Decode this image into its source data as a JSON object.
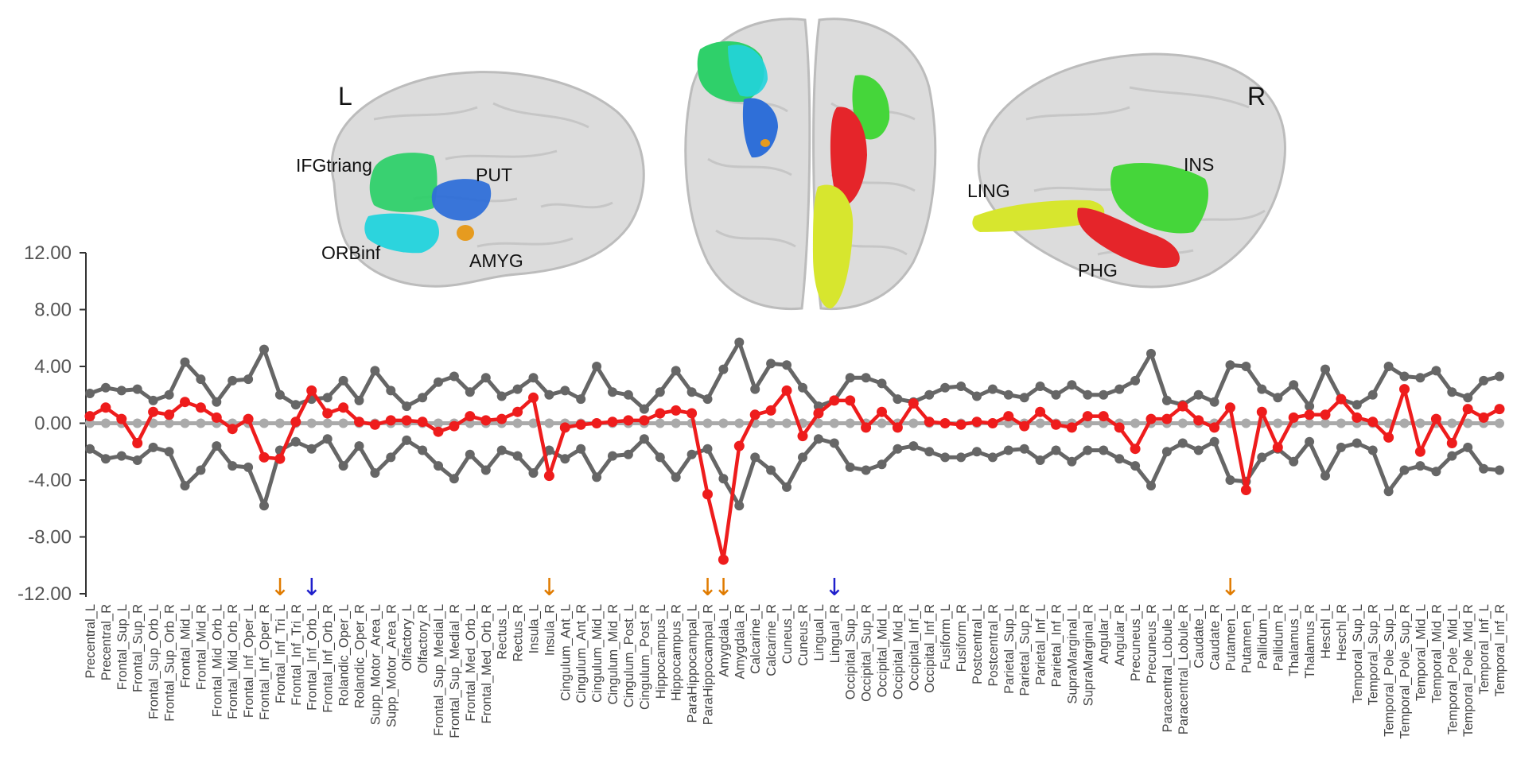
{
  "brain_panel": {
    "hemisphere_left": "L",
    "hemisphere_right": "R",
    "region_labels": [
      "IFGtriang",
      "PUT",
      "ORBinf",
      "AMYG",
      "LING",
      "INS",
      "PHG"
    ],
    "region_colors": {
      "IFGtriang": "#2fd06a",
      "ORBinf": "#22d3dc",
      "PUT": "#2f6fd8",
      "AMYG": "#e69b1f",
      "LING": "#d7e62e",
      "INS": "#45d63a",
      "PHG": "#e5252a"
    }
  },
  "chart_data": {
    "type": "line",
    "title": "",
    "xlabel": "",
    "ylabel": "",
    "ylim": [
      -12,
      12
    ],
    "yticks": [
      "12.00",
      "8.00",
      "4.00",
      "0.00",
      "-4.00",
      "-8.00",
      "-12.00"
    ],
    "grid": false,
    "legend": "none",
    "categories": [
      "Precentral_L",
      "Precentral_R",
      "Frontal_Sup_L",
      "Frontal_Sup_R",
      "Frontal_Sup_Orb_L",
      "Frontal_Sup_Orb_R",
      "Frontal_Mid_L",
      "Frontal_Mid_R",
      "Frontal_Mid_Orb_L",
      "Frontal_Mid_Orb_R",
      "Frontal_Inf_Oper_L",
      "Frontal_Inf_Oper_R",
      "Frontal_Inf_Tri_L",
      "Frontal_Inf_Tri_R",
      "Frontal_Inf_Orb_L",
      "Frontal_Inf_Orb_R",
      "Rolandic_Oper_L",
      "Rolandic_Oper_R",
      "Supp_Motor_Area_L",
      "Supp_Motor_Area_R",
      "Olfactory_L",
      "Olfactory_R",
      "Frontal_Sup_Medial_L",
      "Frontal_Sup_Medial_R",
      "Frontal_Med_Orb_L",
      "Frontal_Med_Orb_R",
      "Rectus_L",
      "Rectus_R",
      "Insula_L",
      "Insula_R",
      "Cingulum_Ant_L",
      "Cingulum_Ant_R",
      "Cingulum_Mid_L",
      "Cingulum_Mid_R",
      "Cingulum_Post_L",
      "Cingulum_Post_R",
      "Hippocampus_L",
      "Hippocampus_R",
      "ParaHippocampal_L",
      "ParaHippocampal_R",
      "Amygdala_L",
      "Amygdala_R",
      "Calcarine_L",
      "Calcarine_R",
      "Cuneus_L",
      "Cuneus_R",
      "Lingual_L",
      "Lingual_R",
      "Occipital_Sup_L",
      "Occipital_Sup_R",
      "Occipital_Mid_L",
      "Occipital_Mid_R",
      "Occipital_Inf_L",
      "Occipital_Inf_R",
      "Fusiform_L",
      "Fusiform_R",
      "Postcentral_L",
      "Postcentral_R",
      "Parietal_Sup_L",
      "Parietal_Sup_R",
      "Parietal_Inf_L",
      "Parietal_Inf_R",
      "SupraMarginal_L",
      "SupraMarginal_R",
      "Angular_L",
      "Angular_R",
      "Precuneus_L",
      "Precuneus_R",
      "Paracentral_Lobule_L",
      "Paracentral_Lobule_R",
      "Caudate_L",
      "Caudate_R",
      "Putamen_L",
      "Putamen_R",
      "Pallidum_L",
      "Pallidum_R",
      "Thalamus_L",
      "Thalamus_R",
      "Heschl_L",
      "Heschl_R",
      "Temporal_Sup_L",
      "Temporal_Sup_R",
      "Temporal_Pole_Sup_L",
      "Temporal_Pole_Sup_R",
      "Temporal_Mid_L",
      "Temporal_Mid_R",
      "Temporal_Pole_Mid_L",
      "Temporal_Pole_Mid_R",
      "Temporal_Inf_L",
      "Temporal_Inf_R"
    ],
    "series": [
      {
        "color": "#666666",
        "values": [
          2.1,
          2.5,
          2.3,
          2.4,
          1.6,
          2.0,
          4.3,
          3.1,
          1.5,
          3.0,
          3.1,
          5.2,
          2.0,
          1.3,
          1.7,
          1.8,
          3.0,
          1.6,
          3.7,
          2.3,
          1.2,
          1.8,
          2.9,
          3.3,
          2.2,
          3.2,
          1.9,
          2.4,
          3.2,
          2.0,
          2.3,
          1.7,
          4.0,
          2.2,
          2.0,
          1.0,
          2.2,
          3.7,
          2.2,
          1.7,
          3.8,
          5.7,
          2.4,
          4.2,
          4.1,
          2.5,
          1.2,
          1.6,
          3.2,
          3.2,
          2.8,
          1.7,
          1.5,
          2.0,
          2.5,
          2.6,
          1.9,
          2.4,
          2.0,
          1.8,
          2.6,
          2.0,
          2.7,
          2.0,
          2.0,
          2.4,
          3.0,
          4.9,
          1.6,
          1.3,
          2.0,
          1.5,
          4.1,
          4.0,
          2.4,
          1.8,
          2.7,
          1.2,
          3.8,
          1.7,
          1.3,
          2.0,
          4.0,
          3.3,
          3.2,
          3.7,
          2.2,
          1.8,
          3.0,
          3.3
        ]
      },
      {
        "color": "#666666",
        "values": [
          -1.8,
          -2.5,
          -2.3,
          -2.6,
          -1.7,
          -2.0,
          -4.4,
          -3.3,
          -1.6,
          -3.0,
          -3.1,
          -5.8,
          -1.9,
          -1.3,
          -1.8,
          -1.1,
          -3.0,
          -1.6,
          -3.5,
          -2.4,
          -1.2,
          -1.9,
          -3.0,
          -3.9,
          -2.2,
          -3.3,
          -1.9,
          -2.3,
          -3.5,
          -1.9,
          -2.5,
          -1.8,
          -3.8,
          -2.3,
          -2.2,
          -1.1,
          -2.4,
          -3.8,
          -2.2,
          -1.8,
          -3.9,
          -5.8,
          -2.4,
          -3.3,
          -4.5,
          -2.4,
          -1.1,
          -1.4,
          -3.1,
          -3.3,
          -2.9,
          -1.8,
          -1.6,
          -2.0,
          -2.4,
          -2.4,
          -2.0,
          -2.4,
          -1.9,
          -1.8,
          -2.6,
          -1.9,
          -2.7,
          -1.9,
          -1.9,
          -2.5,
          -3.0,
          -4.4,
          -2.0,
          -1.4,
          -1.9,
          -1.3,
          -4.0,
          -4.1,
          -2.4,
          -1.8,
          -2.7,
          -1.3,
          -3.7,
          -1.7,
          -1.4,
          -1.9,
          -4.8,
          -3.3,
          -3.0,
          -3.4,
          -2.3,
          -1.7,
          -3.2,
          -3.3
        ]
      },
      {
        "color": "#aaaaaa",
        "values": [
          0,
          0,
          0,
          0,
          0,
          0,
          0,
          0,
          0,
          0,
          0,
          0,
          0,
          0,
          0,
          0,
          0,
          0,
          0,
          0,
          0,
          0,
          0,
          0,
          0,
          0,
          0,
          0,
          0,
          0,
          0,
          0,
          0,
          0,
          0,
          0,
          0,
          0,
          0,
          0,
          0,
          0,
          0,
          0,
          0,
          0,
          0,
          0,
          0,
          0,
          0,
          0,
          0,
          0,
          0,
          0,
          0,
          0,
          0,
          0,
          0,
          0,
          0,
          0,
          0,
          0,
          0,
          0,
          0,
          0,
          0,
          0,
          0,
          0,
          0,
          0,
          0,
          0,
          0,
          0,
          0,
          0,
          0,
          0,
          0,
          0,
          0,
          0,
          0,
          0
        ]
      },
      {
        "color": "#ee1c1c",
        "values": [
          0.5,
          1.1,
          0.3,
          -1.4,
          0.8,
          0.6,
          1.5,
          1.1,
          0.4,
          -0.4,
          0.3,
          -2.4,
          -2.5,
          0.1,
          2.3,
          0.7,
          1.1,
          0.1,
          -0.1,
          0.2,
          0.2,
          0.1,
          -0.6,
          -0.2,
          0.5,
          0.2,
          0.3,
          0.8,
          1.8,
          -3.7,
          -0.3,
          -0.1,
          0.0,
          0.1,
          0.2,
          0.2,
          0.7,
          0.9,
          0.7,
          -5.0,
          -9.6,
          -1.6,
          0.6,
          0.9,
          2.3,
          -0.9,
          0.7,
          1.6,
          1.6,
          -0.3,
          0.8,
          -0.3,
          1.4,
          0.1,
          0.0,
          -0.1,
          0.1,
          0.0,
          0.5,
          -0.2,
          0.8,
          -0.1,
          -0.3,
          0.5,
          0.5,
          -0.3,
          -1.8,
          0.3,
          0.3,
          1.2,
          0.2,
          -0.3,
          1.1,
          -4.7,
          0.8,
          -1.7,
          0.4,
          0.6,
          0.6,
          1.7,
          0.4,
          0.1,
          -1.0,
          2.4,
          -2.0,
          0.3,
          -1.4,
          1.0,
          0.4,
          1.0
        ]
      }
    ],
    "annotations": [
      {
        "category": "Frontal_Inf_Tri_L",
        "symbol": "↓",
        "color": "#e07b00"
      },
      {
        "category": "Frontal_Inf_Orb_L",
        "symbol": "↓",
        "color": "#1f1fcc"
      },
      {
        "category": "Insula_R",
        "symbol": "↓",
        "color": "#e07b00"
      },
      {
        "category": "ParaHippocampal_R",
        "symbol": "↓",
        "color": "#e07b00"
      },
      {
        "category": "Amygdala_L",
        "symbol": "↓",
        "color": "#e07b00"
      },
      {
        "category": "Lingual_R",
        "symbol": "↓",
        "color": "#1f1fcc"
      },
      {
        "category": "Putamen_L",
        "symbol": "↓",
        "color": "#e07b00"
      }
    ]
  }
}
